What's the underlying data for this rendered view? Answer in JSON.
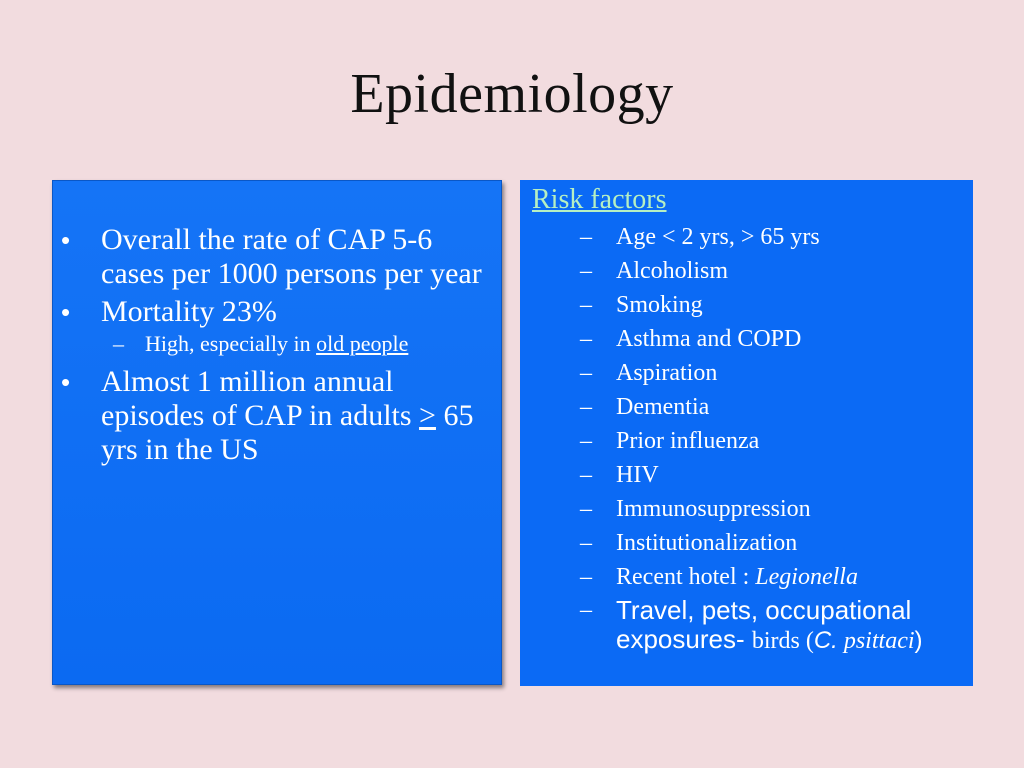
{
  "slide": {
    "title": "Epidemiology"
  },
  "left_box": {
    "bullet1": "Overall the rate of CAP 5-6 cases per 1000 persons per year",
    "bullet2": "Mortality 23%",
    "sub_prefix": "High, especially in ",
    "sub_link": "old people",
    "bullet3_pre": "Almost 1 million annual episodes of CAP in adults ",
    "bullet3_sym": ">",
    "bullet3_post": " 65 yrs in the US",
    "bullet_glyph": "•",
    "dash_glyph": "–"
  },
  "right_box": {
    "heading": "Risk factors",
    "dash_glyph": "–",
    "items": [
      "Age < 2 yrs, > 65 yrs",
      "Alcoholism",
      "Smoking",
      "Asthma and COPD",
      "Aspiration",
      "Dementia",
      "Prior influenza",
      "HIV",
      "Immunosuppression",
      "Institutionalization"
    ],
    "hotel_prefix": "Recent hotel : ",
    "hotel_italic": "Legionella",
    "travel_a": "Travel, pets, occupational",
    "travel_b": "exposures- ",
    "travel_c": "birds (",
    "travel_d": "C.",
    "travel_e": " psittaci",
    "travel_f": ")"
  },
  "colors": {
    "background": "#f2dcdf",
    "box": "#0b6af5",
    "heading_green": "#b6f0c2",
    "text": "#ffffff"
  }
}
